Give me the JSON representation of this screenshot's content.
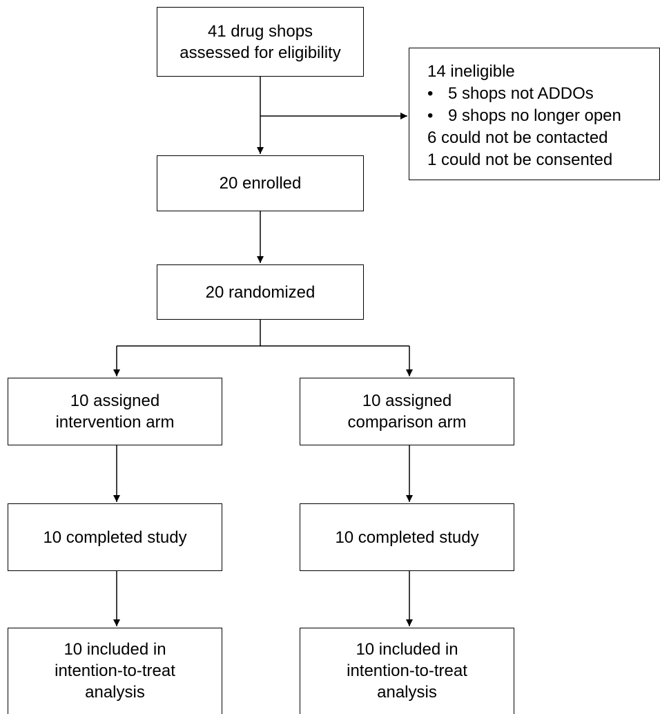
{
  "boxes": {
    "assessed": [
      "41 drug shops",
      "assessed for eligibility"
    ],
    "enrolled": [
      "20 enrolled"
    ],
    "randomized": [
      "20 randomized"
    ],
    "intervention_assigned": [
      "10 assigned",
      "intervention arm"
    ],
    "comparison_assigned": [
      "10 assigned",
      "comparison arm"
    ],
    "intervention_completed": [
      "10 completed study"
    ],
    "comparison_completed": [
      "10 completed study"
    ],
    "intervention_analysis": [
      "10 included in",
      "intention-to-treat",
      "analysis"
    ],
    "comparison_analysis": [
      "10 included in",
      "intention-to-treat",
      "analysis"
    ]
  },
  "exclusions": {
    "ineligible": "14 ineligible",
    "bullet_marker": "•",
    "reasons": [
      "5 shops not ADDOs",
      "9 shops no longer open"
    ],
    "not_contacted": "6 could not be contacted",
    "not_consented": "1 could not be consented"
  }
}
